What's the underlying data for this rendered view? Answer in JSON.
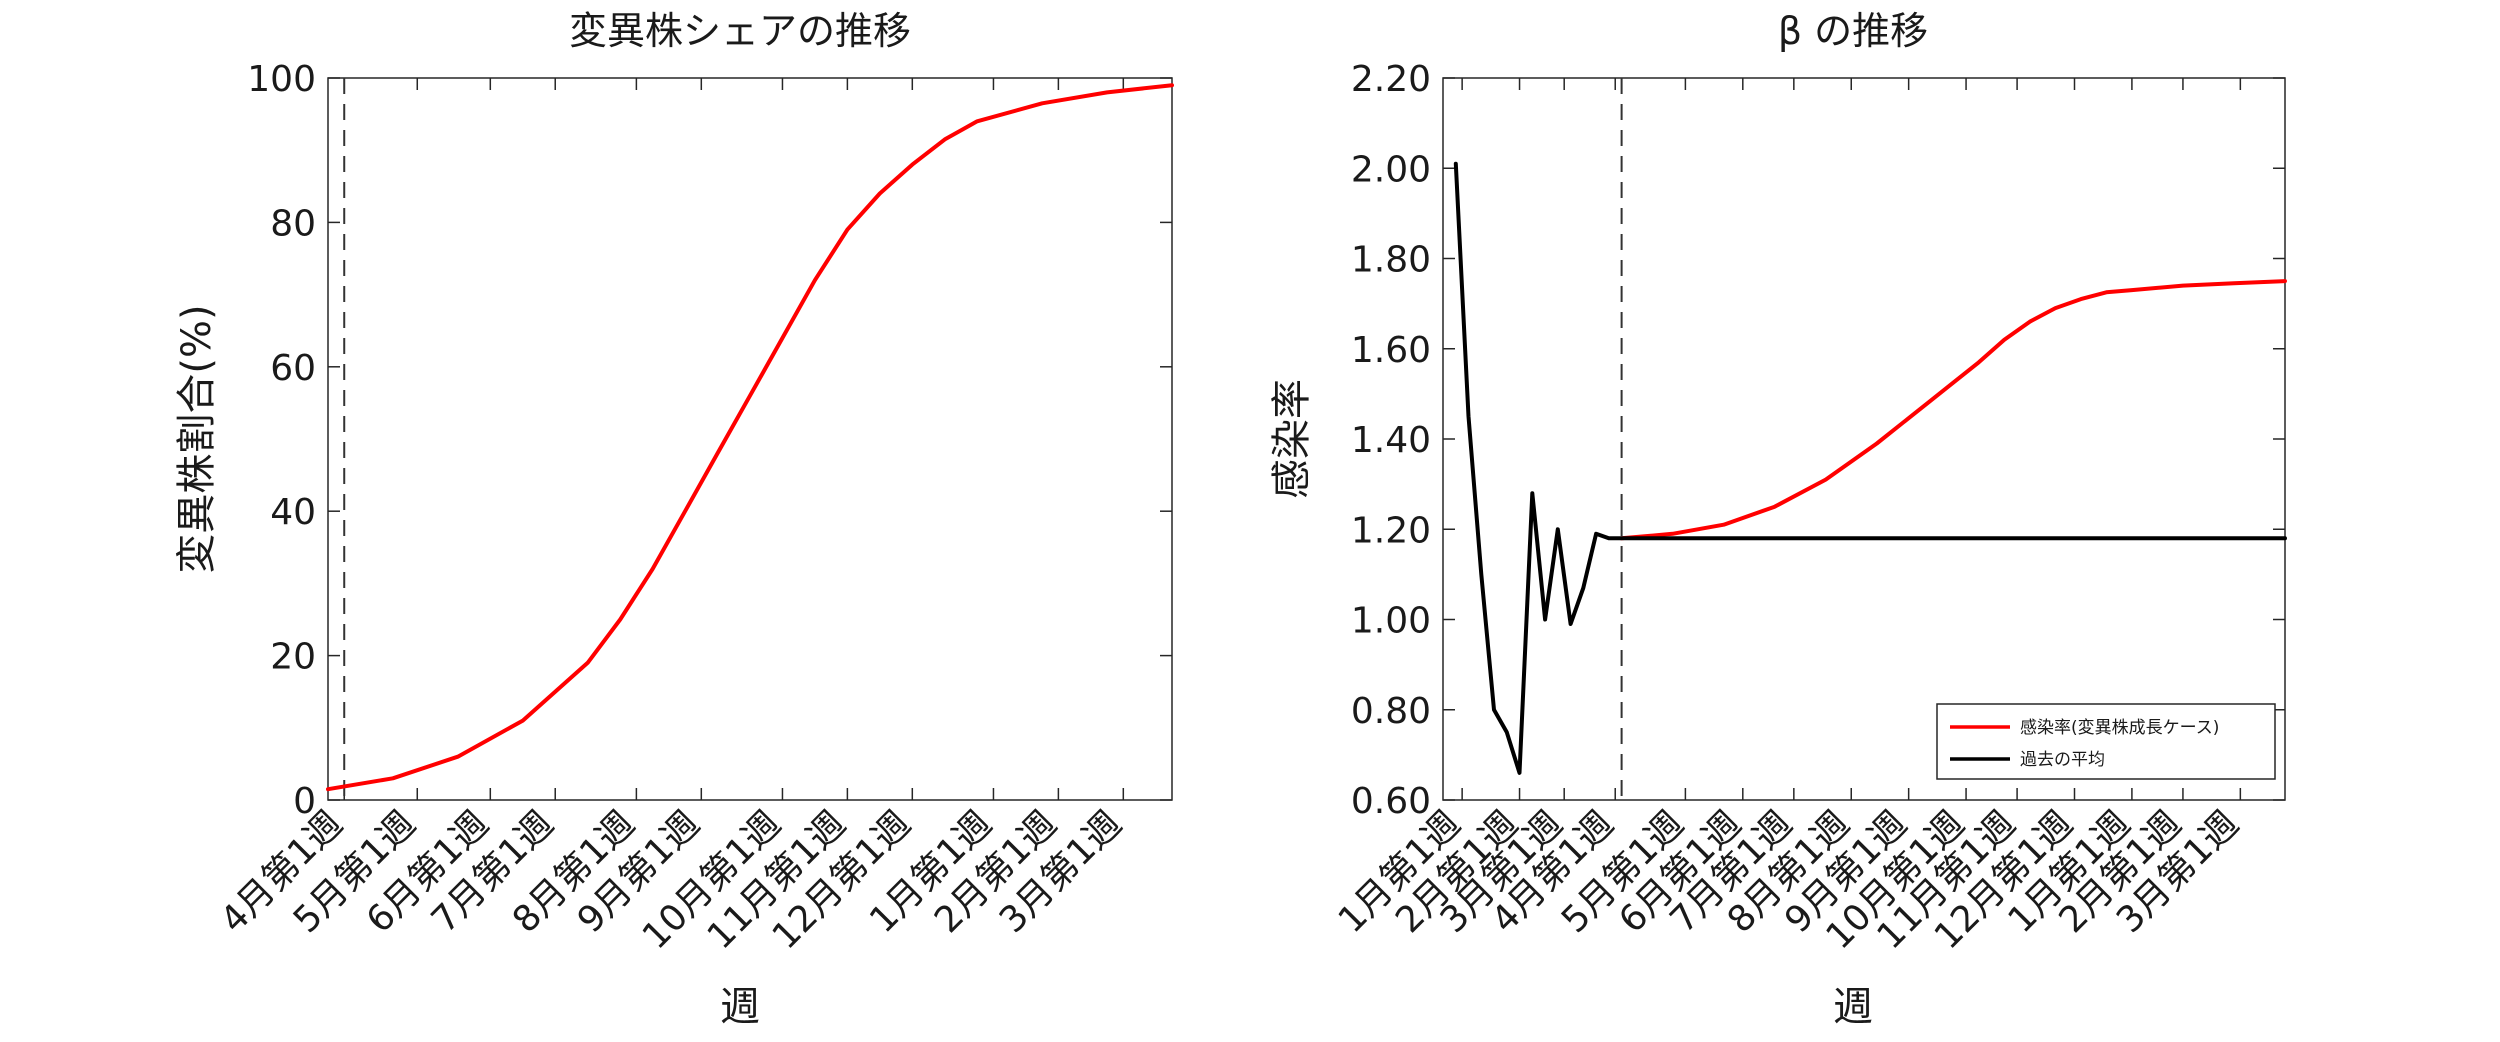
{
  "chart_data": [
    {
      "type": "line",
      "title": "変異株シェアの推移",
      "xlabel": "週",
      "ylabel": "変異株割合(%)",
      "ylim": [
        0,
        100
      ],
      "yticks": [
        0,
        20,
        40,
        60,
        80,
        100
      ],
      "xlim_weeks": [
        0,
        52
      ],
      "xticks": [
        {
          "label": "4月第1週",
          "week": 1
        },
        {
          "label": "5月第1週",
          "week": 5.5
        },
        {
          "label": "6月第1週",
          "week": 10
        },
        {
          "label": "7月第1週",
          "week": 14
        },
        {
          "label": "8月第1週",
          "week": 19
        },
        {
          "label": "9月第1週",
          "week": 23
        },
        {
          "label": "10月第1週",
          "week": 28
        },
        {
          "label": "11月第1週",
          "week": 32
        },
        {
          "label": "12月第1週",
          "week": 36
        },
        {
          "label": "1月第1週",
          "week": 41
        },
        {
          "label": "2月第1週",
          "week": 45
        },
        {
          "label": "3月第1週",
          "week": 49
        }
      ],
      "vline_week": 1,
      "series": [
        {
          "color": "#ff0000",
          "x": [
            0,
            4,
            8,
            12,
            16,
            18,
            20,
            22,
            24,
            26,
            28,
            30,
            32,
            34,
            36,
            38,
            40,
            44,
            48,
            52
          ],
          "y": [
            1.5,
            3,
            6,
            11,
            19,
            25,
            32,
            40,
            48,
            56,
            64,
            72,
            79,
            84,
            88,
            91.5,
            94,
            96.5,
            98,
            99
          ]
        }
      ]
    },
    {
      "type": "line",
      "title": "β の推移",
      "xlabel": "週",
      "ylabel": "感染率",
      "ylim": [
        0.6,
        2.2
      ],
      "yticks": [
        0.6,
        0.8,
        1.0,
        1.2,
        1.4,
        1.6,
        1.8,
        2.0,
        2.2
      ],
      "ytick_labels": [
        "0.60",
        "0.80",
        "1.00",
        "1.20",
        "1.40",
        "1.60",
        "1.80",
        "2.00",
        "2.20"
      ],
      "xlim_weeks": [
        -14,
        52
      ],
      "xticks": [
        {
          "label": "1月第1週",
          "week": -12.5
        },
        {
          "label": "2月第1週",
          "week": -8
        },
        {
          "label": "3月第1週",
          "week": -4.5
        },
        {
          "label": "4月第1週",
          "week": -0.5
        },
        {
          "label": "5月第1週",
          "week": 5
        },
        {
          "label": "6月第1週",
          "week": 9.5
        },
        {
          "label": "7月第1週",
          "week": 13.5
        },
        {
          "label": "8月第1週",
          "week": 18
        },
        {
          "label": "9月第1週",
          "week": 22.5
        },
        {
          "label": "10月第1週",
          "week": 27
        },
        {
          "label": "11月第1週",
          "week": 31
        },
        {
          "label": "12月第1週",
          "week": 35.5
        },
        {
          "label": "1月第1週",
          "week": 40
        },
        {
          "label": "2月第1週",
          "week": 44
        },
        {
          "label": "3月第1週",
          "week": 48.5
        }
      ],
      "vline_week": 0,
      "legend": {
        "location": "bottom-right"
      },
      "series": [
        {
          "name": "感染率(変異株成長ケース)",
          "color": "#ff0000",
          "x": [
            0,
            4,
            8,
            12,
            16,
            20,
            24,
            28,
            30,
            32,
            34,
            36,
            38,
            40,
            44,
            48,
            52
          ],
          "y": [
            1.18,
            1.19,
            1.21,
            1.25,
            1.31,
            1.39,
            1.48,
            1.57,
            1.62,
            1.66,
            1.69,
            1.71,
            1.725,
            1.73,
            1.74,
            1.745,
            1.75
          ]
        },
        {
          "name": "過去の平均",
          "color": "#000000",
          "x": [
            -13,
            -12,
            -11,
            -10,
            -9,
            -8,
            -7,
            -6,
            -5,
            -4,
            -3,
            -2,
            -1,
            0,
            52
          ],
          "y": [
            2.01,
            1.45,
            1.1,
            0.8,
            0.75,
            0.66,
            1.28,
            1.0,
            1.2,
            0.99,
            1.07,
            1.19,
            1.18,
            1.18,
            1.18
          ]
        }
      ]
    }
  ]
}
